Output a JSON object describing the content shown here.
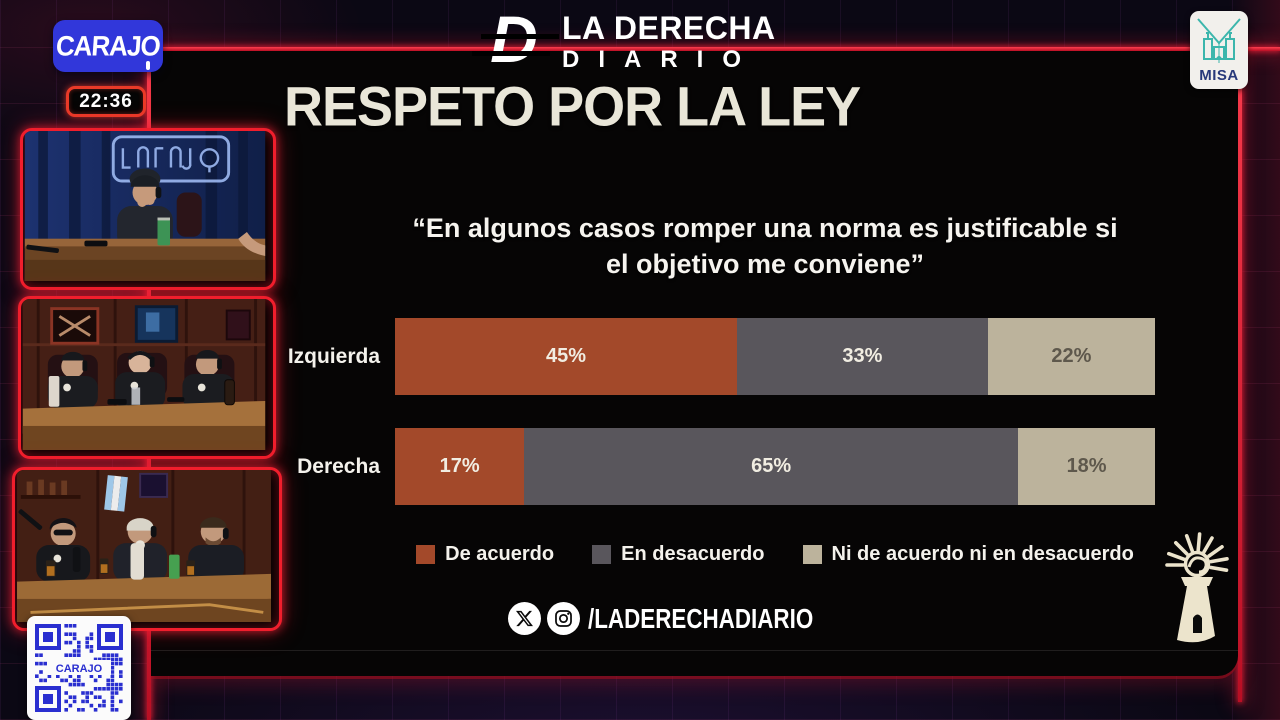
{
  "header": {
    "carajo_logo": "CARAJO",
    "timer": "22:36",
    "show_logo": {
      "initial": "D",
      "line1": "LA DERECHA",
      "line2": "DIARIO"
    },
    "misa_badge": "MISA",
    "qr_label": "CARAJO"
  },
  "slide": {
    "title": "RESPETO POR LA LEY",
    "quote_line1": "“En algunos casos romper una norma es justificable si",
    "quote_line2": "el objetivo me conviene”",
    "social_handle": "/LADERECHADIARIO"
  },
  "chart_data": {
    "type": "bar",
    "stacked": true,
    "orientation": "horizontal",
    "unit": "%",
    "xlim": [
      0,
      100
    ],
    "grid": false,
    "legend_position": "bottom",
    "value_labels": "inside",
    "categories": [
      "Izquierda",
      "Derecha"
    ],
    "series": [
      {
        "name": "De acuerdo",
        "color": "#a3492a",
        "label_color": "#f1ede2",
        "values": [
          45,
          17
        ]
      },
      {
        "name": "En desacuerdo",
        "color": "#59565c",
        "label_color": "#f1ede2",
        "values": [
          33,
          65
        ]
      },
      {
        "name": "Ni de acuerdo ni en desacuerdo",
        "color": "#bcb39c",
        "label_color": "#5e584c",
        "values": [
          22,
          18
        ]
      }
    ]
  },
  "colors": {
    "neon_red": "#e11b2c",
    "panel_bg": "#060505",
    "title_cream": "#e9e6d8",
    "carajo_blue": "#3137da",
    "misa_teal": "#3cb6ac",
    "lighthouse_ivory": "#ece4cc"
  }
}
